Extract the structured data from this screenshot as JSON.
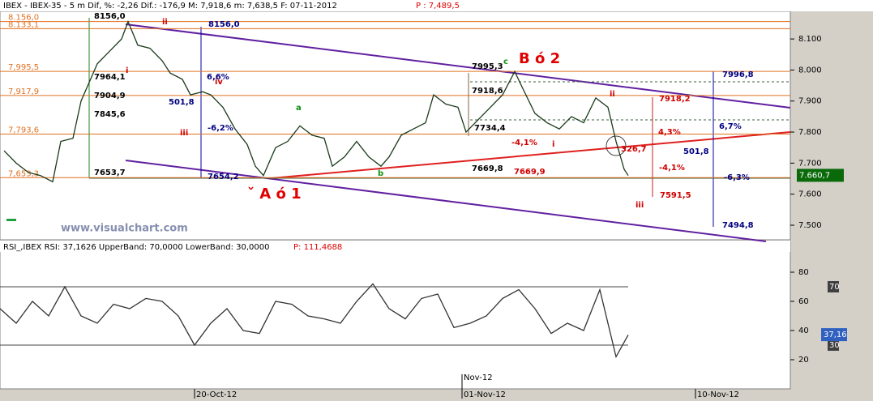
{
  "chart_data": [
    {
      "type": "line",
      "header": "IBEX - IBEX-35 -  5 m Dif, %: -2,26 Dif.: -176,9 M: 7,918,6 m: 7,638,5 F: 07-11-2012",
      "header_price": "P : 7,489,5",
      "series": [
        {
          "color": "#1a3a1a",
          "x": [
            0.5,
            2,
            3.5,
            5,
            6.5,
            7.5,
            9,
            10,
            11,
            12,
            13.5,
            15,
            15.8,
            17,
            18.5,
            20,
            21,
            22.5,
            23.5,
            25,
            26,
            27.5,
            29,
            30.5,
            31.5,
            32.5,
            34,
            35.5,
            37,
            38.5,
            40,
            41,
            42.5,
            44,
            45.5,
            47,
            48,
            49.5,
            51,
            52.5,
            53.5,
            55,
            56.5,
            57.5,
            59,
            60.5,
            62,
            63.5,
            64.5,
            66,
            67.5,
            69,
            70.5,
            72,
            73.5,
            75,
            76,
            77,
            77.5
          ],
          "values": [
            7740,
            7700,
            7670,
            7660,
            7640,
            7770,
            7780,
            7900,
            7960,
            8020,
            8060,
            8100,
            8156,
            8080,
            8070,
            8030,
            7990,
            7970,
            7920,
            7930,
            7920,
            7880,
            7810,
            7760,
            7690,
            7660,
            7750,
            7770,
            7820,
            7790,
            7780,
            7690,
            7720,
            7770,
            7720,
            7690,
            7720,
            7790,
            7810,
            7830,
            7920,
            7890,
            7880,
            7800,
            7840,
            7880,
            7920,
            7995,
            7940,
            7860,
            7830,
            7810,
            7850,
            7830,
            7910,
            7880,
            7770,
            7680,
            7660
          ]
        }
      ],
      "xlim": [
        0,
        97.5
      ],
      "ylim": [
        7453,
        8189
      ],
      "yticks": [
        {
          "value": 7500,
          "label": "7.500"
        },
        {
          "value": 7600,
          "label": "7.600"
        },
        {
          "value": 7700,
          "label": "7.700"
        },
        {
          "value": 7800,
          "label": "7.800"
        },
        {
          "value": 7900,
          "label": "7.900"
        },
        {
          "value": 8000,
          "label": "8.000"
        },
        {
          "value": 8100,
          "label": "8.100"
        }
      ],
      "levels": [
        8156,
        8133.1,
        7995.5,
        7917.9,
        7793.6,
        7653.3
      ],
      "level_labels": [
        "8.156,0",
        "8.133,1",
        "7,995,5",
        "7,917,9",
        "7,793,6",
        "7,653,3"
      ],
      "last_value": 7660.7,
      "last_label": "7.660,7",
      "annotations": [
        "8156,0",
        "ii",
        "i",
        "7964,1",
        "7904,9",
        "7845,6",
        "7653,7",
        "8156,0",
        "6,6%",
        "501,8",
        "iv",
        "-6,2%",
        "iii",
        "7654,2",
        "a",
        "b",
        "ˇ A ó 1",
        "7995,3",
        "c",
        "B ó 2",
        "7918,6",
        "7734,4",
        "-4,1%",
        "i",
        "7669,8",
        "7669,9",
        "ii",
        "7918,2",
        "4,3%",
        "326,7",
        "-4,1%",
        "7591,5",
        "iii",
        "7996,8",
        "6,7%",
        "501,8",
        "-6,3%",
        "7494,8",
        "www.visualchart.com"
      ]
    },
    {
      "type": "line",
      "header": "RSI_,IBEX RSI: 37,1626 UpperBand: 70,0000 LowerBand: 30,0000",
      "header_price": "P: 111,4688",
      "series": [
        {
          "color": "#333333",
          "x": [
            0,
            2,
            4,
            6,
            8,
            10,
            12,
            14,
            16,
            18,
            20,
            22,
            24,
            26,
            28,
            30,
            32,
            34,
            36,
            38,
            40,
            42,
            44,
            46,
            48,
            50,
            52,
            54,
            56,
            58,
            60,
            62,
            64,
            66,
            68,
            70,
            72,
            74,
            76,
            77.5
          ],
          "values": [
            55,
            45,
            60,
            50,
            70,
            50,
            45,
            58,
            55,
            62,
            60,
            50,
            30,
            45,
            55,
            40,
            38,
            60,
            58,
            50,
            48,
            45,
            60,
            72,
            55,
            48,
            62,
            65,
            42,
            45,
            50,
            62,
            68,
            55,
            38,
            45,
            40,
            68,
            22,
            37
          ]
        }
      ],
      "xlim": [
        0,
        97.5
      ],
      "ylim": [
        0,
        100
      ],
      "yticks": [
        20,
        40,
        60,
        80
      ],
      "bands": [
        70,
        30
      ],
      "last_value": 37.16,
      "last_label": "37,16",
      "xticks": [
        {
          "value": 24,
          "label": "20-Oct-12"
        },
        {
          "value": 57,
          "label": "01-Nov-12"
        },
        {
          "value": 85.8,
          "label": "10-Nov-12"
        }
      ],
      "xticks_month": [
        {
          "value": 57,
          "label": "Nov-12"
        }
      ]
    }
  ]
}
